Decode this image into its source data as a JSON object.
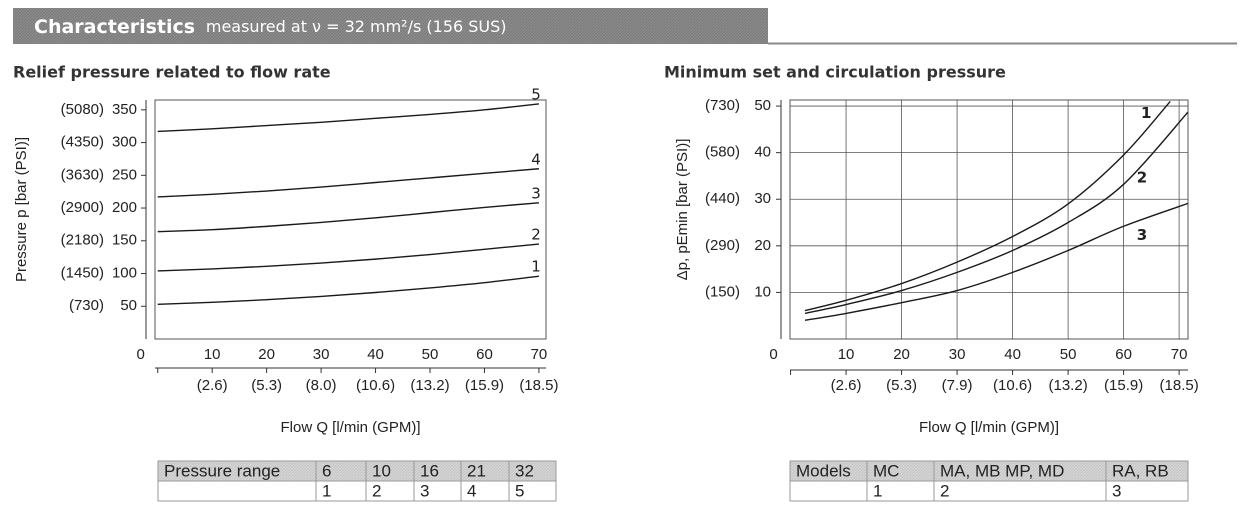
{
  "header": {
    "title": "Characteristics",
    "subtitle": "measured at ν = 32 mm²/s (156 SUS)"
  },
  "chart_data": [
    {
      "type": "line",
      "title": "Relief pressure related to flow rate",
      "x_label": "Flow Q [l/min (GPM)]",
      "y_label": "Pressure p [bar (PSI)]",
      "xlim": [
        -0.5,
        71.3
      ],
      "ylim": [
        0,
        365
      ],
      "xticks": [
        0,
        10,
        20,
        30,
        40,
        50,
        60,
        70
      ],
      "x_secondary_labels": [
        "(2.6)",
        "(5.3)",
        "(8.0)",
        "(10.6)",
        "(13.2)",
        "(15.9)",
        "(18.5)"
      ],
      "yticks": [
        50,
        100,
        150,
        200,
        250,
        300,
        350
      ],
      "y_secondary_labels": [
        "(730)",
        "(1450)",
        "(2180)",
        "(2900)",
        "(3630)",
        "(4350)",
        "(5080)"
      ],
      "grid": false,
      "x": [
        0,
        10,
        20,
        30,
        40,
        50,
        60,
        70
      ],
      "series": [
        {
          "name": "1",
          "color": "#1a1a1a",
          "values": [
            53,
            56,
            60,
            65,
            71,
            78,
            86,
            96
          ]
        },
        {
          "name": "2",
          "color": "#1a1a1a",
          "values": [
            104,
            107,
            111,
            116,
            122,
            129,
            137,
            145
          ]
        },
        {
          "name": "3",
          "color": "#1a1a1a",
          "values": [
            164,
            167,
            172,
            178,
            185,
            193,
            201,
            208
          ]
        },
        {
          "name": "4",
          "color": "#1a1a1a",
          "values": [
            217,
            221,
            226,
            232,
            239,
            246,
            253,
            260
          ]
        },
        {
          "name": "5",
          "color": "#1a1a1a",
          "values": [
            317,
            321,
            326,
            331,
            337,
            343,
            350,
            359
          ]
        }
      ]
    },
    {
      "type": "line",
      "title": "Minimum set and circulation pressure",
      "x_label": "Flow Q [l/min (GPM)]",
      "y_label": "Δp, pEmin [bar (PSI)]",
      "xlim": [
        -0.1,
        71.6
      ],
      "ylim": [
        0,
        51.3
      ],
      "xticks": [
        0,
        10,
        20,
        30,
        40,
        50,
        60,
        70
      ],
      "x_secondary_labels": [
        "(2.6)",
        "(5.3)",
        "(7.9)",
        "(10.6)",
        "(13.2)",
        "(15.9)",
        "(18.5)"
      ],
      "yticks": [
        10,
        20,
        30,
        40,
        50
      ],
      "y_secondary_labels": [
        "(150)",
        "(290)",
        "(440)",
        "(580)",
        "(730)"
      ],
      "grid": true,
      "x": [
        2.6,
        10,
        20,
        30,
        40,
        50,
        60,
        71.6
      ],
      "series": [
        {
          "name": "1",
          "color": "#1a1a1a",
          "values": [
            6.1,
            8.3,
            11.9,
            16.5,
            22,
            29,
            39.5,
            null
          ]
        },
        {
          "name": "2",
          "color": "#1a1a1a",
          "values": [
            5.5,
            7.4,
            10.4,
            14.3,
            19,
            25,
            33.2,
            48.7
          ]
        },
        {
          "name": "3",
          "color": "#1a1a1a",
          "values": [
            4,
            5.5,
            7.8,
            10.4,
            14.3,
            19,
            24.2,
            29.1
          ]
        }
      ],
      "series_end": {
        "x": 68.4,
        "values": [
          51
        ]
      }
    }
  ],
  "tables": [
    {
      "header": [
        "Pressure range",
        "6",
        "10",
        "16",
        "21",
        "32"
      ],
      "row": [
        "1",
        "2",
        "3",
        "4",
        "5"
      ]
    },
    {
      "header": [
        "Models",
        "MC",
        "MA, MB MP, MD",
        "RA, RB"
      ],
      "row": [
        "1",
        "2",
        "3"
      ]
    }
  ]
}
